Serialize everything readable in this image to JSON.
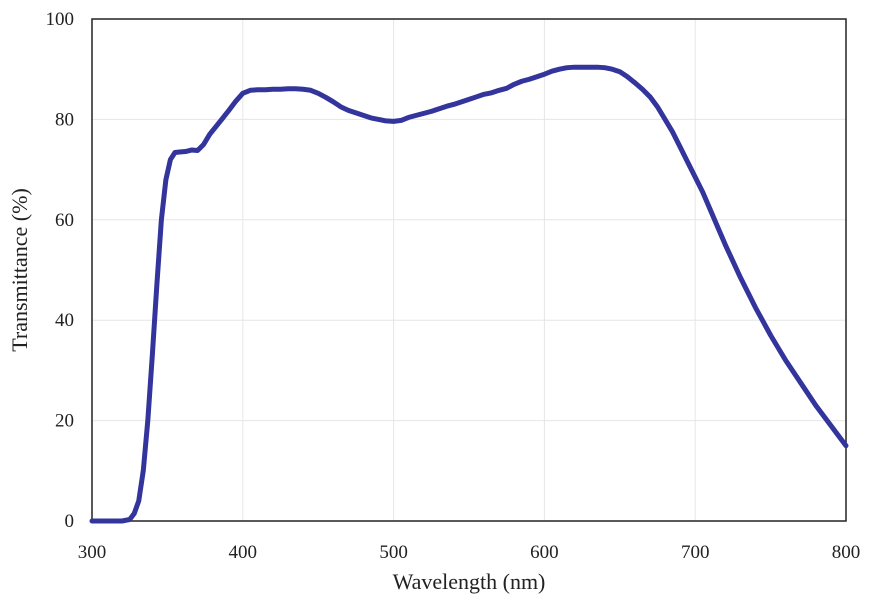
{
  "chart_data": {
    "type": "line",
    "xlabel": "Wavelength (nm)",
    "ylabel": "Transmittance (%)",
    "xlim": [
      300,
      800
    ],
    "ylim": [
      0,
      100
    ],
    "xticks": [
      300,
      400,
      500,
      600,
      700,
      800
    ],
    "yticks": [
      0,
      20,
      40,
      60,
      80,
      100
    ],
    "grid": true,
    "legend": "none",
    "colors": {
      "series": "#33349c",
      "grid": "#e6e6e6",
      "axis": "#222222"
    },
    "series": [
      {
        "x": [
          300,
          320,
          325,
          328,
          331,
          334,
          337,
          340,
          343,
          346,
          349,
          352,
          355,
          358,
          362,
          366,
          370,
          374,
          378,
          382,
          386,
          390,
          395,
          400,
          405,
          410,
          415,
          420,
          425,
          430,
          435,
          440,
          445,
          450,
          455,
          460,
          465,
          470,
          475,
          480,
          485,
          490,
          495,
          500,
          505,
          510,
          515,
          520,
          525,
          530,
          535,
          540,
          545,
          550,
          555,
          560,
          565,
          570,
          575,
          580,
          585,
          590,
          595,
          600,
          605,
          610,
          615,
          620,
          625,
          630,
          635,
          640,
          645,
          650,
          655,
          660,
          665,
          670,
          675,
          680,
          685,
          690,
          695,
          700,
          705,
          710,
          715,
          720,
          730,
          740,
          750,
          760,
          770,
          780,
          790,
          800
        ],
        "y": [
          0,
          0,
          0.3,
          1.5,
          4,
          10,
          20,
          33,
          47,
          60,
          68,
          72,
          73.4,
          73.5,
          73.6,
          73.9,
          73.8,
          75,
          77,
          78.5,
          80,
          81.5,
          83.5,
          85.2,
          85.8,
          85.9,
          85.9,
          86,
          86,
          86.1,
          86.1,
          86,
          85.8,
          85.2,
          84.4,
          83.5,
          82.5,
          81.8,
          81.3,
          80.8,
          80.3,
          80,
          79.7,
          79.6,
          79.8,
          80.4,
          80.8,
          81.2,
          81.6,
          82.1,
          82.6,
          83,
          83.5,
          84,
          84.5,
          85,
          85.3,
          85.8,
          86.2,
          87,
          87.6,
          88,
          88.5,
          89,
          89.6,
          90,
          90.3,
          90.4,
          90.4,
          90.4,
          90.4,
          90.3,
          90,
          89.5,
          88.5,
          87.3,
          86,
          84.5,
          82.5,
          80,
          77.5,
          74.5,
          71.5,
          68.5,
          65.5,
          62,
          58.5,
          55,
          48.5,
          42.5,
          37,
          32,
          27.5,
          23,
          19,
          15
        ]
      }
    ]
  }
}
